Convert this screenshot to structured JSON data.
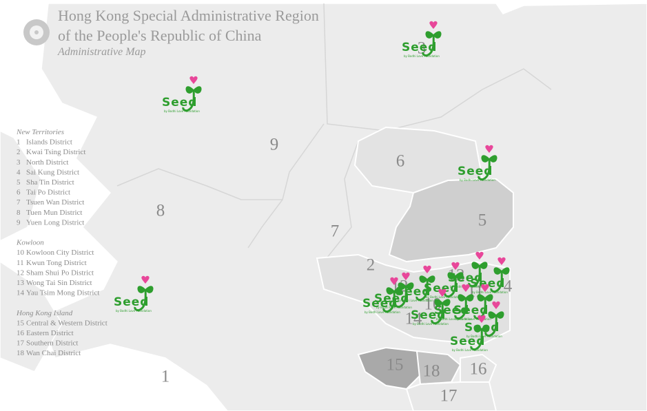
{
  "header": {
    "title_line1": "Hong Kong Special Administrative Region",
    "title_line2": "of the People's Republic of China",
    "subtitle": "Administrative Map"
  },
  "legend": [
    {
      "heading": "New Territories",
      "items": [
        {
          "number": "1",
          "name": "Islands District"
        },
        {
          "number": "2",
          "name": "Kwai Tsing District"
        },
        {
          "number": "3",
          "name": "North District"
        },
        {
          "number": "4",
          "name": "Sai Kung District"
        },
        {
          "number": "5",
          "name": "Sha Tin District"
        },
        {
          "number": "6",
          "name": "Tai Po District"
        },
        {
          "number": "7",
          "name": "Tsuen Wan District"
        },
        {
          "number": "8",
          "name": "Tuen Mun District"
        },
        {
          "number": "9",
          "name": "Yuen Long District"
        }
      ]
    },
    {
      "heading": "Kowloon",
      "items": [
        {
          "number": "10",
          "name": "Kowloon City District"
        },
        {
          "number": "11",
          "name": "Kwun Tong District"
        },
        {
          "number": "12",
          "name": "Sham Shui Po District"
        },
        {
          "number": "13",
          "name": "Wong Tai Sin District"
        },
        {
          "number": "14",
          "name": "Yau Tsim Mong District"
        }
      ]
    },
    {
      "heading": "Hong Kong Island",
      "items": [
        {
          "number": "15",
          "name": "Central & Western District"
        },
        {
          "number": "16",
          "name": "Eastern District"
        },
        {
          "number": "17",
          "name": "Southern District"
        },
        {
          "number": "18",
          "name": "Wan Chai District"
        }
      ]
    }
  ],
  "marker": {
    "logo": "Seed",
    "tagline": "by Bodhi Love Foundation"
  }
}
